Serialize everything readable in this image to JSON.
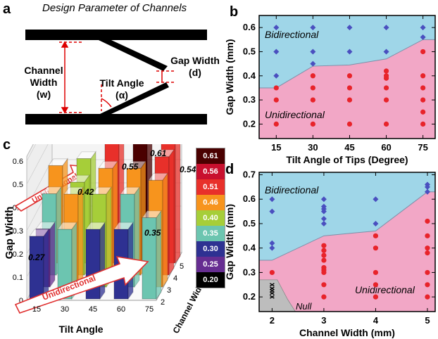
{
  "panels": {
    "a": "a",
    "b": "b",
    "c": "c",
    "d": "d"
  },
  "panel_a": {
    "title": "Design Parameter of Channels",
    "channel_width": [
      "Channel",
      "Width",
      "(w)"
    ],
    "gap_width": [
      "Gap Width",
      "(d)"
    ],
    "tilt_angle": [
      "Tilt Angle",
      "(α)"
    ]
  },
  "chart_data": [
    {
      "id": "b",
      "type": "scatter",
      "xlabel": "Tilt Angle of Tips (Degree)",
      "ylabel": "Gap Width (mm)",
      "x_ticks": [
        15,
        30,
        45,
        60,
        75
      ],
      "y_ticks": [
        "0.2",
        "0.3",
        "0.4",
        "0.5",
        "0.6"
      ],
      "xlim": [
        8,
        80
      ],
      "ylim": [
        0.14,
        0.65
      ],
      "regions": [
        {
          "label": "Bidirectional",
          "color": "#9fd6e8"
        },
        {
          "label": "Unidirectional",
          "color": "#f2a7c6"
        }
      ],
      "boundary": [
        [
          8,
          0.35
        ],
        [
          15,
          0.35
        ],
        [
          30,
          0.44
        ],
        [
          45,
          0.445
        ],
        [
          60,
          0.47
        ],
        [
          75,
          0.55
        ],
        [
          80,
          0.55
        ]
      ],
      "series": [
        {
          "marker": "diamond",
          "color": "#4a4fbf",
          "x": [
            15,
            15,
            15,
            30,
            30,
            30,
            45,
            45,
            60,
            60,
            75,
            75
          ],
          "y": [
            0.6,
            0.5,
            0.4,
            0.6,
            0.5,
            0.45,
            0.6,
            0.5,
            0.6,
            0.5,
            0.6,
            0.56
          ]
        },
        {
          "marker": "circle",
          "color": "#e8232a",
          "x": [
            15,
            15,
            15,
            30,
            30,
            30,
            30,
            45,
            45,
            45,
            45,
            60,
            60,
            60,
            60,
            60,
            60,
            75,
            75,
            75,
            75,
            75,
            75
          ],
          "y": [
            0.35,
            0.3,
            0.2,
            0.4,
            0.35,
            0.3,
            0.2,
            0.4,
            0.35,
            0.3,
            0.2,
            0.42,
            0.4,
            0.39,
            0.35,
            0.3,
            0.2,
            0.5,
            0.4,
            0.35,
            0.3,
            0.25,
            0.2
          ]
        }
      ]
    },
    {
      "id": "c",
      "type": "bar3d",
      "xlabel": "Tilt Angle",
      "ylabel": "Gap Width",
      "zlabel": "Channel Width",
      "x_ticks": [
        "15",
        "30",
        "45",
        "60",
        "75"
      ],
      "y_ticks": [
        "0",
        "0.1",
        "0.2",
        "0.3",
        "0.4",
        "0.5",
        "0.6"
      ],
      "z_ticks": [
        "2",
        "3",
        "4",
        "5"
      ],
      "arrow_labels": [
        "Unidirectional",
        "Unidirectional"
      ],
      "value_labels": [
        "0.27",
        "0.42",
        "0.55",
        "0.61",
        "0.54",
        "0.35"
      ],
      "legend": [
        {
          "value": "0.61",
          "color": "#4a0000"
        },
        {
          "value": "0.56",
          "color": "#c8102e"
        },
        {
          "value": "0.51",
          "color": "#e8302a"
        },
        {
          "value": "0.46",
          "color": "#f7941d"
        },
        {
          "value": "0.40",
          "color": "#a6ce39"
        },
        {
          "value": "0.35",
          "color": "#6cc5b0"
        },
        {
          "value": "0.30",
          "color": "#2e3192"
        },
        {
          "value": "0.25",
          "color": "#662d91"
        },
        {
          "value": "0.20",
          "color": "#000000"
        }
      ],
      "bars": [
        {
          "angle": 15,
          "cw": 2,
          "h": 0.27,
          "color": "#2e3192"
        },
        {
          "angle": 15,
          "cw": 3,
          "h": 0.25,
          "color": "#662d91"
        },
        {
          "angle": 15,
          "cw": 4,
          "h": 0.35,
          "color": "#6cc5b0"
        },
        {
          "angle": 15,
          "cw": 5,
          "h": 0.42,
          "color": "#f7941d"
        },
        {
          "angle": 30,
          "cw": 2,
          "h": 0.3,
          "color": "#6cc5b0"
        },
        {
          "angle": 30,
          "cw": 3,
          "h": 0.4,
          "color": "#f7941d"
        },
        {
          "angle": 30,
          "cw": 4,
          "h": 0.4,
          "color": "#a6ce39"
        },
        {
          "angle": 30,
          "cw": 5,
          "h": 0.45,
          "color": "#a6ce39"
        },
        {
          "angle": 45,
          "cw": 2,
          "h": 0.3,
          "color": "#2e3192"
        },
        {
          "angle": 45,
          "cw": 3,
          "h": 0.4,
          "color": "#a6ce39"
        },
        {
          "angle": 45,
          "cw": 4,
          "h": 0.46,
          "color": "#f7941d"
        },
        {
          "angle": 45,
          "cw": 5,
          "h": 0.55,
          "color": "#e8302a"
        },
        {
          "angle": 60,
          "cw": 2,
          "h": 0.3,
          "color": "#2e3192"
        },
        {
          "angle": 60,
          "cw": 3,
          "h": 0.4,
          "color": "#6cc5b0"
        },
        {
          "angle": 60,
          "cw": 4,
          "h": 0.46,
          "color": "#f7941d"
        },
        {
          "angle": 60,
          "cw": 5,
          "h": 0.61,
          "color": "#4a0000"
        },
        {
          "angle": 75,
          "cw": 2,
          "h": 0.35,
          "color": "#6cc5b0"
        },
        {
          "angle": 75,
          "cw": 3,
          "h": 0.46,
          "color": "#f7941d"
        },
        {
          "angle": 75,
          "cw": 4,
          "h": 0.51,
          "color": "#e8302a"
        },
        {
          "angle": 75,
          "cw": 5,
          "h": 0.54,
          "color": "#e8302a"
        }
      ]
    },
    {
      "id": "d",
      "type": "scatter",
      "xlabel": "Channel Width (mm)",
      "ylabel": "Gap Width (mm)",
      "x_ticks": [
        2,
        3,
        4,
        5
      ],
      "y_ticks": [
        "0.2",
        "0.3",
        "0.4",
        "0.5",
        "0.6",
        "0.7"
      ],
      "xlim": [
        1.75,
        5.15
      ],
      "ylim": [
        0.14,
        0.71
      ],
      "regions": [
        {
          "label": "Bidirectional",
          "color": "#9fd6e8"
        },
        {
          "label": "Unidirectional",
          "color": "#f2a7c6"
        },
        {
          "label": "Null",
          "color": "#bdbdbd"
        }
      ],
      "boundary": [
        [
          1.75,
          0.35
        ],
        [
          2,
          0.35
        ],
        [
          3,
          0.45
        ],
        [
          4,
          0.47
        ],
        [
          5,
          0.63
        ],
        [
          5.15,
          0.63
        ]
      ],
      "null_region": [
        [
          1.75,
          0.27
        ],
        [
          2.1,
          0.27
        ],
        [
          2.3,
          0.19
        ],
        [
          2.45,
          0.14
        ],
        [
          1.75,
          0.14
        ]
      ],
      "series": [
        {
          "marker": "diamond",
          "color": "#4a4fbf",
          "x": [
            2,
            2,
            2,
            2,
            3,
            3,
            3,
            3,
            3,
            3,
            4,
            4,
            5,
            5,
            5
          ],
          "y": [
            0.6,
            0.55,
            0.42,
            0.4,
            0.6,
            0.57,
            0.56,
            0.55,
            0.52,
            0.5,
            0.6,
            0.5,
            0.66,
            0.65,
            0.63
          ]
        },
        {
          "marker": "circle",
          "color": "#e8232a",
          "x": [
            2,
            3,
            3,
            3,
            3,
            3,
            3,
            3,
            3,
            3,
            4,
            4,
            4,
            4,
            4,
            5,
            5,
            5,
            5,
            5,
            5,
            5
          ],
          "y": [
            0.3,
            0.41,
            0.39,
            0.37,
            0.35,
            0.32,
            0.31,
            0.3,
            0.25,
            0.2,
            0.45,
            0.4,
            0.3,
            0.25,
            0.2,
            0.51,
            0.45,
            0.4,
            0.38,
            0.3,
            0.25,
            0.2
          ]
        },
        {
          "marker": "x",
          "color": "#000000",
          "x": [
            2,
            2,
            2,
            2,
            2
          ],
          "y": [
            0.25,
            0.235,
            0.225,
            0.215,
            0.2
          ]
        }
      ]
    }
  ]
}
